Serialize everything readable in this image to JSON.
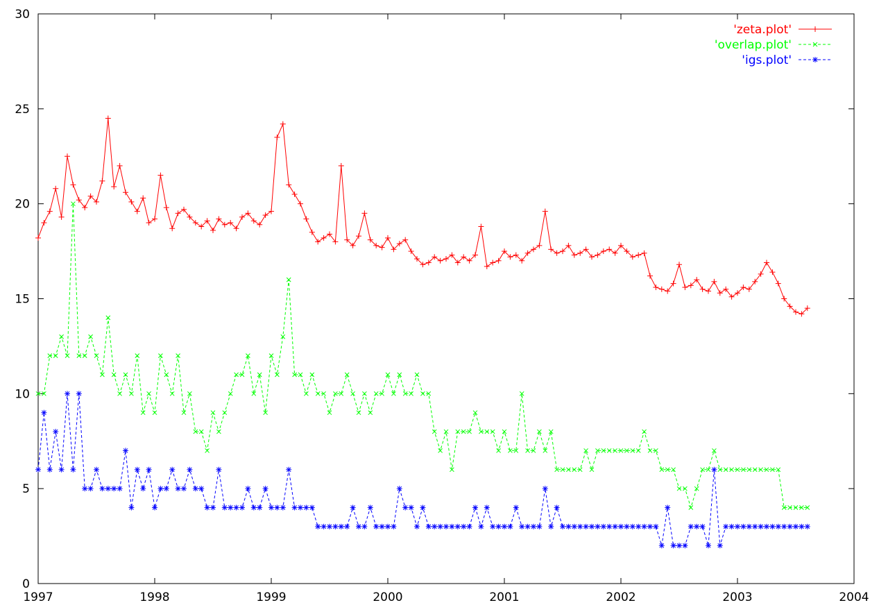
{
  "chart_data": {
    "type": "line",
    "title": "",
    "xlabel": "",
    "ylabel": "",
    "xlim": [
      1997,
      2004
    ],
    "ylim": [
      0,
      30
    ],
    "xticks": [
      "1997",
      "1998",
      "1999",
      "2000",
      "2001",
      "2002",
      "2003",
      "2004"
    ],
    "yticks": [
      "0",
      "5",
      "10",
      "15",
      "20",
      "25",
      "30"
    ],
    "grid": false,
    "legend_position": "top-right",
    "series": [
      {
        "name": "'zeta.plot'",
        "color": "#ff0000",
        "marker": "plus",
        "dash": "solid",
        "x": [
          1997.0,
          1997.05,
          1997.1,
          1997.15,
          1997.2,
          1997.25,
          1997.3,
          1997.35,
          1997.4,
          1997.45,
          1997.5,
          1997.55,
          1997.6,
          1997.65,
          1997.7,
          1997.75,
          1997.8,
          1997.85,
          1997.9,
          1997.95,
          1998.0,
          1998.05,
          1998.1,
          1998.15,
          1998.2,
          1998.25,
          1998.3,
          1998.35,
          1998.4,
          1998.45,
          1998.5,
          1998.55,
          1998.6,
          1998.65,
          1998.7,
          1998.75,
          1998.8,
          1998.85,
          1998.9,
          1998.95,
          1999.0,
          1999.05,
          1999.1,
          1999.15,
          1999.2,
          1999.25,
          1999.3,
          1999.35,
          1999.4,
          1999.45,
          1999.5,
          1999.55,
          1999.6,
          1999.65,
          1999.7,
          1999.75,
          1999.8,
          1999.85,
          1999.9,
          1999.95,
          2000.0,
          2000.05,
          2000.1,
          2000.15,
          2000.2,
          2000.25,
          2000.3,
          2000.35,
          2000.4,
          2000.45,
          2000.5,
          2000.55,
          2000.6,
          2000.65,
          2000.7,
          2000.75,
          2000.8,
          2000.85,
          2000.9,
          2000.95,
          2001.0,
          2001.05,
          2001.1,
          2001.15,
          2001.2,
          2001.25,
          2001.3,
          2001.35,
          2001.4,
          2001.45,
          2001.5,
          2001.55,
          2001.6,
          2001.65,
          2001.7,
          2001.75,
          2001.8,
          2001.85,
          2001.9,
          2001.95,
          2002.0,
          2002.05,
          2002.1,
          2002.15,
          2002.2,
          2002.25,
          2002.3,
          2002.35,
          2002.4,
          2002.45,
          2002.5,
          2002.55,
          2002.6,
          2002.65,
          2002.7,
          2002.75,
          2002.8,
          2002.85,
          2002.9,
          2002.95,
          2003.0,
          2003.05,
          2003.1,
          2003.15,
          2003.2,
          2003.25,
          2003.3,
          2003.35,
          2003.4,
          2003.45,
          2003.5,
          2003.55,
          2003.6
        ],
        "y": [
          18.2,
          19.0,
          19.6,
          20.8,
          19.3,
          22.5,
          21.0,
          20.2,
          19.8,
          20.4,
          20.1,
          21.2,
          24.5,
          20.9,
          22.0,
          20.6,
          20.1,
          19.6,
          20.3,
          19.0,
          19.2,
          21.5,
          19.8,
          18.7,
          19.5,
          19.7,
          19.3,
          19.0,
          18.8,
          19.1,
          18.6,
          19.2,
          18.9,
          19.0,
          18.7,
          19.3,
          19.5,
          19.1,
          18.9,
          19.4,
          19.6,
          23.5,
          24.2,
          21.0,
          20.5,
          20.0,
          19.2,
          18.5,
          18.0,
          18.2,
          18.4,
          18.0,
          22.0,
          18.1,
          17.8,
          18.3,
          19.5,
          18.1,
          17.8,
          17.7,
          18.2,
          17.6,
          17.9,
          18.1,
          17.5,
          17.1,
          16.8,
          16.9,
          17.2,
          17.0,
          17.1,
          17.3,
          16.9,
          17.2,
          17.0,
          17.3,
          18.8,
          16.7,
          16.9,
          17.0,
          17.5,
          17.2,
          17.3,
          17.0,
          17.4,
          17.6,
          17.8,
          19.6,
          17.6,
          17.4,
          17.5,
          17.8,
          17.3,
          17.4,
          17.6,
          17.2,
          17.3,
          17.5,
          17.6,
          17.4,
          17.8,
          17.5,
          17.2,
          17.3,
          17.4,
          16.2,
          15.6,
          15.5,
          15.4,
          15.8,
          16.8,
          15.6,
          15.7,
          16.0,
          15.5,
          15.4,
          15.9,
          15.3,
          15.5,
          15.1,
          15.3,
          15.6,
          15.5,
          15.9,
          16.3,
          16.9,
          16.4,
          15.8,
          15.0,
          14.6,
          14.3,
          14.2,
          14.5
        ]
      },
      {
        "name": "'overlap.plot'",
        "color": "#00ff00",
        "marker": "cross",
        "dash": "dashed",
        "x": [
          1997.0,
          1997.05,
          1997.1,
          1997.15,
          1997.2,
          1997.25,
          1997.3,
          1997.35,
          1997.4,
          1997.45,
          1997.5,
          1997.55,
          1997.6,
          1997.65,
          1997.7,
          1997.75,
          1997.8,
          1997.85,
          1997.9,
          1997.95,
          1998.0,
          1998.05,
          1998.1,
          1998.15,
          1998.2,
          1998.25,
          1998.3,
          1998.35,
          1998.4,
          1998.45,
          1998.5,
          1998.55,
          1998.6,
          1998.65,
          1998.7,
          1998.75,
          1998.8,
          1998.85,
          1998.9,
          1998.95,
          1999.0,
          1999.05,
          1999.1,
          1999.15,
          1999.2,
          1999.25,
          1999.3,
          1999.35,
          1999.4,
          1999.45,
          1999.5,
          1999.55,
          1999.6,
          1999.65,
          1999.7,
          1999.75,
          1999.8,
          1999.85,
          1999.9,
          1999.95,
          2000.0,
          2000.05,
          2000.1,
          2000.15,
          2000.2,
          2000.25,
          2000.3,
          2000.35,
          2000.4,
          2000.45,
          2000.5,
          2000.55,
          2000.6,
          2000.65,
          2000.7,
          2000.75,
          2000.8,
          2000.85,
          2000.9,
          2000.95,
          2001.0,
          2001.05,
          2001.1,
          2001.15,
          2001.2,
          2001.25,
          2001.3,
          2001.35,
          2001.4,
          2001.45,
          2001.5,
          2001.55,
          2001.6,
          2001.65,
          2001.7,
          2001.75,
          2001.8,
          2001.85,
          2001.9,
          2001.95,
          2002.0,
          2002.05,
          2002.1,
          2002.15,
          2002.2,
          2002.25,
          2002.3,
          2002.35,
          2002.4,
          2002.45,
          2002.5,
          2002.55,
          2002.6,
          2002.65,
          2002.7,
          2002.75,
          2002.8,
          2002.85,
          2002.9,
          2002.95,
          2003.0,
          2003.05,
          2003.1,
          2003.15,
          2003.2,
          2003.25,
          2003.3,
          2003.35,
          2003.4,
          2003.45,
          2003.5,
          2003.55,
          2003.6
        ],
        "y": [
          10,
          10,
          12,
          12,
          13,
          12,
          20,
          12,
          12,
          13,
          12,
          11,
          14,
          11,
          10,
          11,
          10,
          12,
          9,
          10,
          9,
          12,
          11,
          10,
          12,
          9,
          10,
          8,
          8,
          7,
          9,
          8,
          9,
          10,
          11,
          11,
          12,
          10,
          11,
          9,
          12,
          11,
          13,
          16,
          11,
          11,
          10,
          11,
          10,
          10,
          9,
          10,
          10,
          11,
          10,
          9,
          10,
          9,
          10,
          10,
          11,
          10,
          11,
          10,
          10,
          11,
          10,
          10,
          8,
          7,
          8,
          6,
          8,
          8,
          8,
          9,
          8,
          8,
          8,
          7,
          8,
          7,
          7,
          10,
          7,
          7,
          8,
          7,
          8,
          6,
          6,
          6,
          6,
          6,
          7,
          6,
          7,
          7,
          7,
          7,
          7,
          7,
          7,
          7,
          8,
          7,
          7,
          6,
          6,
          6,
          5,
          5,
          4,
          5,
          6,
          6,
          7,
          6,
          6,
          6,
          6,
          6,
          6,
          6,
          6,
          6,
          6,
          6,
          4,
          4,
          4,
          4,
          4
        ]
      },
      {
        "name": "'igs.plot'",
        "color": "#0000ff",
        "marker": "star",
        "dash": "dashed",
        "x": [
          1997.0,
          1997.05,
          1997.1,
          1997.15,
          1997.2,
          1997.25,
          1997.3,
          1997.35,
          1997.4,
          1997.45,
          1997.5,
          1997.55,
          1997.6,
          1997.65,
          1997.7,
          1997.75,
          1997.8,
          1997.85,
          1997.9,
          1997.95,
          1998.0,
          1998.05,
          1998.1,
          1998.15,
          1998.2,
          1998.25,
          1998.3,
          1998.35,
          1998.4,
          1998.45,
          1998.5,
          1998.55,
          1998.6,
          1998.65,
          1998.7,
          1998.75,
          1998.8,
          1998.85,
          1998.9,
          1998.95,
          1999.0,
          1999.05,
          1999.1,
          1999.15,
          1999.2,
          1999.25,
          1999.3,
          1999.35,
          1999.4,
          1999.45,
          1999.5,
          1999.55,
          1999.6,
          1999.65,
          1999.7,
          1999.75,
          1999.8,
          1999.85,
          1999.9,
          1999.95,
          2000.0,
          2000.05,
          2000.1,
          2000.15,
          2000.2,
          2000.25,
          2000.3,
          2000.35,
          2000.4,
          2000.45,
          2000.5,
          2000.55,
          2000.6,
          2000.65,
          2000.7,
          2000.75,
          2000.8,
          2000.85,
          2000.9,
          2000.95,
          2001.0,
          2001.05,
          2001.1,
          2001.15,
          2001.2,
          2001.25,
          2001.3,
          2001.35,
          2001.4,
          2001.45,
          2001.5,
          2001.55,
          2001.6,
          2001.65,
          2001.7,
          2001.75,
          2001.8,
          2001.85,
          2001.9,
          2001.95,
          2002.0,
          2002.05,
          2002.1,
          2002.15,
          2002.2,
          2002.25,
          2002.3,
          2002.35,
          2002.4,
          2002.45,
          2002.5,
          2002.55,
          2002.6,
          2002.65,
          2002.7,
          2002.75,
          2002.8,
          2002.85,
          2002.9,
          2002.95,
          2003.0,
          2003.05,
          2003.1,
          2003.15,
          2003.2,
          2003.25,
          2003.3,
          2003.35,
          2003.4,
          2003.45,
          2003.5,
          2003.55,
          2003.6
        ],
        "y": [
          6,
          9,
          6,
          8,
          6,
          10,
          6,
          10,
          5,
          5,
          6,
          5,
          5,
          5,
          5,
          7,
          4,
          6,
          5,
          6,
          4,
          5,
          5,
          6,
          5,
          5,
          6,
          5,
          5,
          4,
          4,
          6,
          4,
          4,
          4,
          4,
          5,
          4,
          4,
          5,
          4,
          4,
          4,
          6,
          4,
          4,
          4,
          4,
          3,
          3,
          3,
          3,
          3,
          3,
          4,
          3,
          3,
          4,
          3,
          3,
          3,
          3,
          5,
          4,
          4,
          3,
          4,
          3,
          3,
          3,
          3,
          3,
          3,
          3,
          3,
          4,
          3,
          4,
          3,
          3,
          3,
          3,
          4,
          3,
          3,
          3,
          3,
          5,
          3,
          4,
          3,
          3,
          3,
          3,
          3,
          3,
          3,
          3,
          3,
          3,
          3,
          3,
          3,
          3,
          3,
          3,
          3,
          2,
          4,
          2,
          2,
          2,
          3,
          3,
          3,
          2,
          6,
          2,
          3,
          3,
          3,
          3,
          3,
          3,
          3,
          3,
          3,
          3,
          3,
          3,
          3,
          3,
          3
        ]
      }
    ]
  }
}
